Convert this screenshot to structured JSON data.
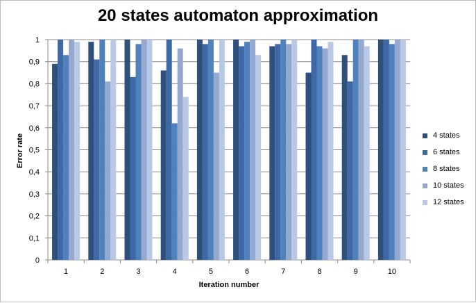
{
  "chart_data": {
    "type": "bar",
    "title": "20 states automaton approximation",
    "xlabel": "Iteration number",
    "ylabel": "Error rate",
    "categories": [
      "1",
      "2",
      "3",
      "4",
      "5",
      "6",
      "7",
      "8",
      "9",
      "10"
    ],
    "ylim": [
      0,
      1
    ],
    "yticks": [
      "0",
      "0,1",
      "0,2",
      "0,3",
      "0,4",
      "0,5",
      "0,6",
      "0,7",
      "0,8",
      "0,9",
      "1"
    ],
    "grid": true,
    "legend_position": "right",
    "series": [
      {
        "name": "4 states",
        "color": "#2f4f7c",
        "values": [
          0.89,
          0.99,
          1.0,
          0.86,
          1.0,
          1.0,
          0.97,
          0.85,
          0.93,
          1.0
        ]
      },
      {
        "name": "6 states",
        "color": "#3e68a6",
        "values": [
          1.0,
          0.91,
          0.83,
          1.0,
          0.98,
          0.97,
          0.98,
          1.0,
          0.81,
          1.0
        ]
      },
      {
        "name": "8 states",
        "color": "#4f81bd",
        "values": [
          0.93,
          1.0,
          0.98,
          0.62,
          1.0,
          0.99,
          1.0,
          0.97,
          1.0,
          0.98
        ]
      },
      {
        "name": "10 states",
        "color": "#95a8cf",
        "values": [
          1.0,
          0.81,
          1.0,
          0.96,
          0.85,
          1.0,
          0.98,
          0.96,
          1.0,
          1.0
        ]
      },
      {
        "name": "12 states",
        "color": "#b9c8e4",
        "values": [
          0.99,
          1.0,
          1.0,
          0.74,
          1.0,
          0.93,
          1.0,
          0.99,
          0.97,
          1.0
        ]
      }
    ]
  }
}
